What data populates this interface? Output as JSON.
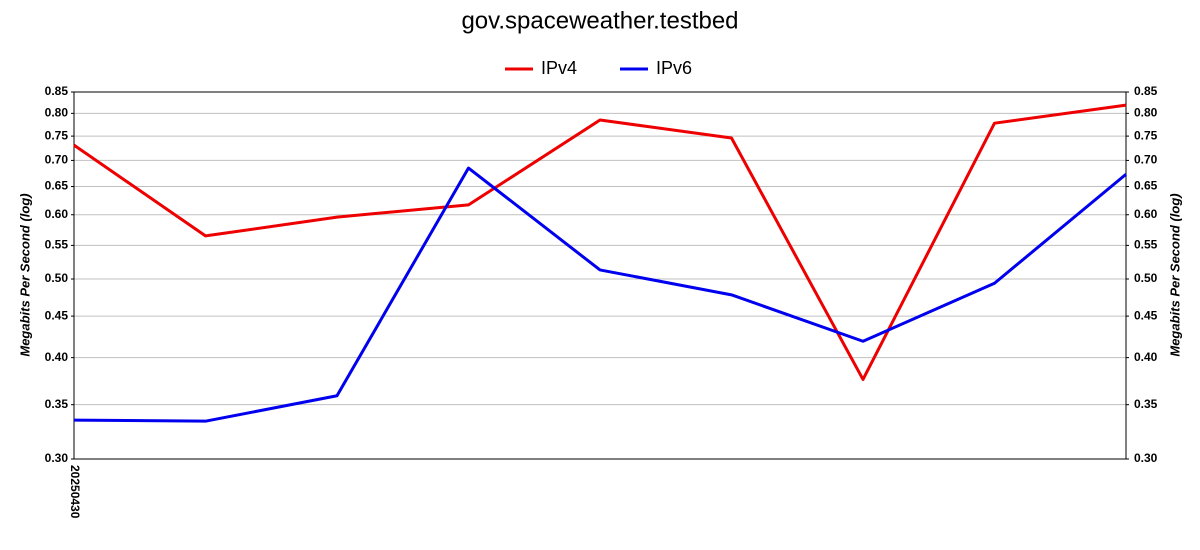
{
  "chart_data": {
    "type": "line",
    "title": "gov.spaceweather.testbed",
    "ylabel": "Megabits Per Second (log)",
    "y2label": "Megabits Per Second (log)",
    "categories": [
      "20250430",
      null,
      null,
      null,
      null,
      null,
      null,
      null,
      null
    ],
    "series": [
      {
        "name": "IPv4",
        "color": "#ee0000",
        "values": [
          0.731,
          0.565,
          0.596,
          0.617,
          0.785,
          0.746,
          0.376,
          0.778,
          0.819
        ]
      },
      {
        "name": "IPv6",
        "color": "#0000ee",
        "values": [
          0.335,
          0.334,
          0.359,
          0.685,
          0.513,
          0.478,
          0.419,
          0.494,
          0.673
        ]
      }
    ],
    "ylim": [
      0.3,
      0.85
    ],
    "y2lim": [
      0.3,
      0.85
    ],
    "log_scale": true,
    "grid": true,
    "legend": "top",
    "yticks": [
      {
        "value": 0.3,
        "label": "0.30"
      },
      0.35,
      {
        "value": 0.4,
        "label": "0.40"
      },
      0.45,
      {
        "value": 0.5,
        "label": "0.50"
      },
      0.55,
      {
        "value": 0.6,
        "label": "0.60"
      },
      0.65,
      {
        "value": 0.7,
        "label": "0.70"
      },
      0.75,
      {
        "value": 0.8,
        "label": "0.80"
      },
      0.85
    ],
    "y2ticks": [
      {
        "value": 0.3,
        "label": "0.30"
      },
      0.35,
      {
        "value": 0.4,
        "label": "0.40"
      },
      0.45,
      {
        "value": 0.5,
        "label": "0.50"
      },
      0.55,
      {
        "value": 0.6,
        "label": "0.60"
      },
      0.65,
      {
        "value": 0.7,
        "label": "0.70"
      },
      0.75,
      {
        "value": 0.8,
        "label": "0.80"
      },
      0.85
    ]
  }
}
